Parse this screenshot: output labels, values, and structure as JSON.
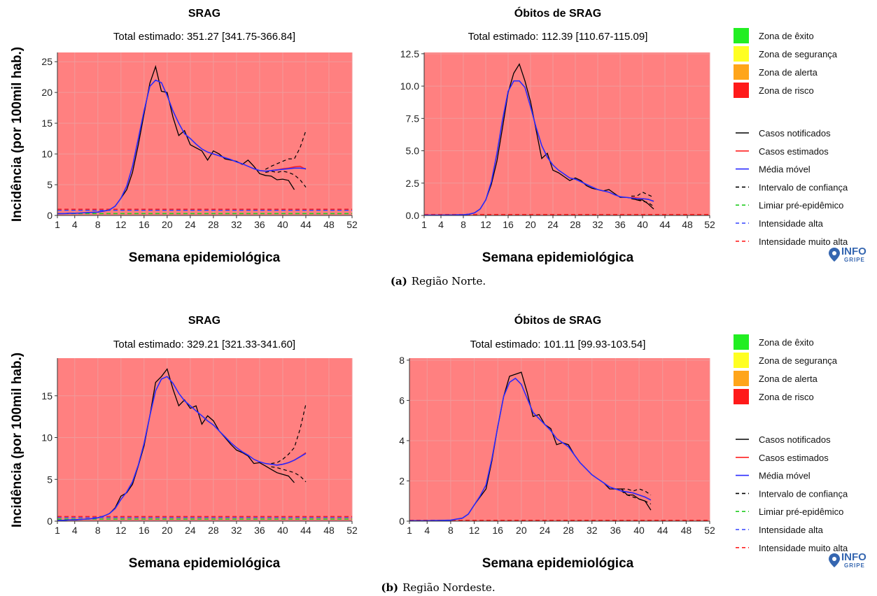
{
  "colors": {
    "panel_bg": "#ff8080",
    "grid": "#f09a9a",
    "notified": "#000000",
    "estimated": "#ff2020",
    "moving_avg": "#2a2aff",
    "ci": "#000000",
    "pre_epidemic": "#22cc22",
    "high": "#3344ff",
    "very_high": "#ff2020",
    "zone_success": "#22ee22",
    "zone_safety": "#ffff22",
    "zone_alert": "#ffa51a",
    "zone_risk": "#ff1a1a",
    "logo": "#3566b0"
  },
  "legend": {
    "zones": [
      {
        "label": "Zona de êxito",
        "color": "#22ee22"
      },
      {
        "label": "Zona de segurança",
        "color": "#ffff22"
      },
      {
        "label": "Zona de alerta",
        "color": "#ffa51a"
      },
      {
        "label": "Zona de risco",
        "color": "#ff1a1a"
      }
    ],
    "lines": [
      {
        "label": "Casos notificados",
        "color": "#000000",
        "dash": false
      },
      {
        "label": "Casos estimados",
        "color": "#ff2020",
        "dash": false
      },
      {
        "label": "Média móvel",
        "color": "#2a2aff",
        "dash": false
      },
      {
        "label": "Intervalo de confiança",
        "color": "#000000",
        "dash": true
      },
      {
        "label": "Limiar pré-epidêmico",
        "color": "#22cc22",
        "dash": true
      },
      {
        "label": "Intensidade alta",
        "color": "#3344ff",
        "dash": true
      },
      {
        "label": "Intensidade muito alta",
        "color": "#ff2020",
        "dash": true
      }
    ]
  },
  "logo": {
    "line1": "INFO",
    "line2": "GRIPE"
  },
  "figures": [
    {
      "label": "(a)",
      "caption": "Região Norte."
    },
    {
      "label": "(b)",
      "caption": "Região Nordeste."
    }
  ],
  "chart_data": [
    {
      "type": "line",
      "title": "SRAG",
      "subtitle": "Total estimado: 351.27 [341.75-366.84]",
      "xlabel": "Semana epidemiológica",
      "ylabel": "Incidência (por 100mil hab.)",
      "xlim": [
        1,
        52
      ],
      "ylim": [
        0,
        26.5
      ],
      "xticks": [
        "1",
        "4",
        "8",
        "12",
        "16",
        "20",
        "24",
        "28",
        "32",
        "36",
        "40",
        "44",
        "48",
        "52"
      ],
      "yticks": [
        "0",
        "5",
        "10",
        "15",
        "20",
        "25"
      ],
      "grid": true,
      "thresholds": {
        "pre_epidemic": 0.3,
        "high": 0.85,
        "very_high": 1.0
      },
      "notified": {
        "x": [
          1,
          2,
          3,
          4,
          5,
          6,
          7,
          8,
          9,
          10,
          11,
          12,
          13,
          14,
          15,
          16,
          17,
          18,
          19,
          20,
          21,
          22,
          23,
          24,
          25,
          26,
          27,
          28,
          29,
          30,
          31,
          32,
          33,
          34,
          35,
          36,
          37,
          38,
          39,
          40,
          41,
          42
        ],
        "y": [
          0.3,
          0.3,
          0.35,
          0.35,
          0.4,
          0.45,
          0.5,
          0.55,
          0.7,
          0.9,
          1.5,
          2.8,
          4.2,
          7.0,
          11.5,
          16.5,
          21.5,
          24.2,
          20.2,
          20.0,
          16.0,
          13.0,
          13.8,
          11.5,
          11.0,
          10.5,
          9.0,
          10.5,
          10.0,
          9.2,
          9.0,
          8.8,
          8.3,
          9.0,
          8.0,
          6.8,
          6.5,
          6.4,
          5.8,
          5.9,
          5.7,
          4.2
        ]
      },
      "moving_avg": {
        "x": [
          1,
          2,
          3,
          4,
          5,
          6,
          7,
          8,
          9,
          10,
          11,
          12,
          13,
          14,
          15,
          16,
          17,
          18,
          19,
          20,
          21,
          22,
          23,
          24,
          25,
          26,
          27,
          28,
          29,
          30,
          31,
          32,
          33,
          34,
          35,
          36,
          37,
          38,
          39,
          40,
          41,
          42,
          43,
          44
        ],
        "y": [
          0.3,
          0.3,
          0.35,
          0.35,
          0.4,
          0.45,
          0.5,
          0.55,
          0.7,
          0.9,
          1.5,
          2.8,
          4.8,
          8.0,
          12.5,
          17.0,
          21.0,
          22.0,
          21.6,
          19.5,
          17.0,
          15.0,
          13.3,
          12.5,
          11.6,
          10.8,
          10.3,
          10.0,
          9.7,
          9.4,
          9.1,
          8.7,
          8.4,
          8.0,
          7.6,
          7.3,
          7.2,
          7.3,
          7.4,
          7.5,
          7.6,
          7.7,
          7.7,
          7.6
        ]
      },
      "estimated": {
        "x": [
          38,
          39,
          40,
          41,
          42,
          43,
          44
        ],
        "y": [
          7.3,
          7.4,
          7.6,
          7.7,
          7.9,
          8.0,
          7.5
        ]
      },
      "ci_upper": {
        "x": [
          37,
          38,
          39,
          40,
          41,
          42,
          43,
          44
        ],
        "y": [
          7.5,
          8.0,
          8.4,
          8.8,
          9.2,
          9.2,
          11.0,
          13.8
        ]
      },
      "ci_lower": {
        "x": [
          37,
          38,
          39,
          40,
          41,
          42,
          43,
          44
        ],
        "y": [
          7.0,
          7.2,
          7.0,
          7.2,
          7.0,
          6.6,
          5.8,
          4.6
        ]
      }
    },
    {
      "type": "line",
      "title": "Óbitos de SRAG",
      "subtitle": "Total estimado: 112.39 [110.67-115.09]",
      "xlabel": "Semana epidemiológica",
      "ylabel": "",
      "xlim": [
        1,
        52
      ],
      "ylim": [
        0,
        12.6
      ],
      "xticks": [
        "1",
        "4",
        "8",
        "12",
        "16",
        "20",
        "24",
        "28",
        "32",
        "36",
        "40",
        "44",
        "48",
        "52"
      ],
      "yticks": [
        "0.0",
        "2.5",
        "5.0",
        "7.5",
        "10.0",
        "12.5"
      ],
      "grid": true,
      "thresholds": {
        "pre_epidemic": 0.04,
        "high": 0.06,
        "very_high": 0.07
      },
      "notified": {
        "x": [
          1,
          2,
          3,
          4,
          5,
          6,
          7,
          8,
          9,
          10,
          11,
          12,
          13,
          14,
          15,
          16,
          17,
          18,
          19,
          20,
          21,
          22,
          23,
          24,
          25,
          26,
          27,
          28,
          29,
          30,
          31,
          32,
          33,
          34,
          35,
          36,
          37,
          38,
          39,
          40,
          41,
          42
        ],
        "y": [
          0.02,
          0.02,
          0.02,
          0.02,
          0.03,
          0.03,
          0.05,
          0.05,
          0.1,
          0.2,
          0.5,
          1.2,
          2.4,
          4.2,
          6.8,
          9.5,
          11.0,
          11.7,
          10.4,
          8.8,
          6.6,
          4.4,
          4.8,
          3.5,
          3.3,
          3.0,
          2.7,
          2.9,
          2.7,
          2.3,
          2.1,
          2.0,
          1.9,
          2.0,
          1.7,
          1.4,
          1.4,
          1.35,
          1.2,
          1.2,
          0.9,
          0.5
        ]
      },
      "moving_avg": {
        "x": [
          1,
          2,
          3,
          4,
          5,
          6,
          7,
          8,
          9,
          10,
          11,
          12,
          13,
          14,
          15,
          16,
          17,
          18,
          19,
          20,
          21,
          22,
          23,
          24,
          25,
          26,
          27,
          28,
          29,
          30,
          31,
          32,
          33,
          34,
          35,
          36,
          37,
          38,
          39,
          40,
          41,
          42
        ],
        "y": [
          0.02,
          0.02,
          0.02,
          0.02,
          0.03,
          0.03,
          0.05,
          0.05,
          0.1,
          0.2,
          0.5,
          1.2,
          2.6,
          4.8,
          7.4,
          9.6,
          10.4,
          10.4,
          9.9,
          8.4,
          6.8,
          5.4,
          4.5,
          3.9,
          3.5,
          3.2,
          2.9,
          2.8,
          2.6,
          2.4,
          2.2,
          2.0,
          1.9,
          1.8,
          1.6,
          1.45,
          1.4,
          1.35,
          1.3,
          1.3,
          1.25,
          1.1
        ]
      },
      "estimated": {
        "x": [
          38,
          39,
          40,
          41,
          42
        ],
        "y": [
          1.4,
          1.35,
          1.3,
          1.25,
          1.1
        ]
      },
      "ci_upper": {
        "x": [
          38,
          39,
          40,
          41,
          42
        ],
        "y": [
          1.5,
          1.5,
          1.8,
          1.6,
          1.4
        ]
      },
      "ci_lower": {
        "x": [
          38,
          39,
          40,
          41,
          42
        ],
        "y": [
          1.3,
          1.2,
          1.1,
          1.0,
          0.7
        ]
      }
    },
    {
      "type": "line",
      "title": "SRAG",
      "subtitle": "Total estimado: 329.21 [321.33-341.60]",
      "xlabel": "Semana epidemiológica",
      "ylabel": "Incidência (por 100mil hab.)",
      "xlim": [
        1,
        52
      ],
      "ylim": [
        0,
        19.5
      ],
      "xticks": [
        "1",
        "4",
        "8",
        "12",
        "16",
        "20",
        "24",
        "28",
        "32",
        "36",
        "40",
        "44",
        "48",
        "52"
      ],
      "yticks": [
        "0",
        "5",
        "10",
        "15"
      ],
      "grid": true,
      "thresholds": {
        "pre_epidemic": 0.25,
        "high": 0.45,
        "very_high": 0.55
      },
      "notified": {
        "x": [
          1,
          2,
          3,
          4,
          5,
          6,
          7,
          8,
          9,
          10,
          11,
          12,
          13,
          14,
          15,
          16,
          17,
          18,
          19,
          20,
          21,
          22,
          23,
          24,
          25,
          26,
          27,
          28,
          29,
          30,
          31,
          32,
          33,
          34,
          35,
          36,
          37,
          38,
          39,
          40,
          41,
          42
        ],
        "y": [
          0.1,
          0.1,
          0.15,
          0.15,
          0.2,
          0.25,
          0.3,
          0.4,
          0.6,
          0.9,
          1.6,
          3.0,
          3.4,
          4.4,
          6.6,
          9.0,
          12.6,
          16.6,
          17.3,
          18.2,
          15.8,
          13.8,
          14.5,
          13.5,
          13.8,
          11.6,
          12.6,
          12.0,
          10.8,
          10.0,
          9.2,
          8.5,
          8.2,
          7.8,
          6.9,
          7.0,
          6.6,
          6.2,
          5.8,
          5.6,
          5.4,
          4.6
        ]
      },
      "moving_avg": {
        "x": [
          1,
          2,
          3,
          4,
          5,
          6,
          7,
          8,
          9,
          10,
          11,
          12,
          13,
          14,
          15,
          16,
          17,
          18,
          19,
          20,
          21,
          22,
          23,
          24,
          25,
          26,
          27,
          28,
          29,
          30,
          31,
          32,
          33,
          34,
          35,
          36,
          37,
          38,
          39,
          40,
          41,
          42,
          43,
          44
        ],
        "y": [
          0.1,
          0.1,
          0.15,
          0.15,
          0.2,
          0.25,
          0.3,
          0.4,
          0.6,
          0.9,
          1.5,
          2.6,
          3.5,
          4.7,
          6.7,
          9.3,
          12.6,
          15.6,
          17.0,
          17.3,
          16.5,
          15.3,
          14.4,
          13.8,
          13.2,
          12.6,
          12.0,
          11.5,
          10.8,
          10.1,
          9.4,
          8.8,
          8.3,
          7.9,
          7.4,
          7.1,
          6.9,
          6.8,
          6.7,
          6.8,
          7.0,
          7.3,
          7.7,
          8.1
        ]
      },
      "estimated": {
        "x": [
          39,
          40,
          41,
          42,
          43,
          44
        ],
        "y": [
          6.7,
          6.8,
          7.0,
          7.3,
          7.7,
          8.2
        ]
      },
      "ci_upper": {
        "x": [
          38,
          39,
          40,
          41,
          42,
          43,
          44
        ],
        "y": [
          6.9,
          7.0,
          7.4,
          8.0,
          8.8,
          11.0,
          14.0
        ]
      },
      "ci_lower": {
        "x": [
          38,
          39,
          40,
          41,
          42,
          43,
          44
        ],
        "y": [
          6.5,
          6.4,
          6.2,
          6.0,
          5.8,
          5.4,
          4.7
        ]
      }
    },
    {
      "type": "line",
      "title": "Óbitos de SRAG",
      "subtitle": "Total estimado: 101.11 [99.93-103.54]",
      "xlabel": "Semana epidemiológica",
      "ylabel": "",
      "xlim": [
        1,
        52
      ],
      "ylim": [
        0,
        8.1
      ],
      "xticks": [
        "1",
        "4",
        "8",
        "12",
        "16",
        "20",
        "24",
        "28",
        "32",
        "36",
        "40",
        "44",
        "48",
        "52"
      ],
      "yticks": [
        "0",
        "2",
        "4",
        "6",
        "8"
      ],
      "grid": true,
      "thresholds": {
        "pre_epidemic": 0.02,
        "high": 0.03,
        "very_high": 0.04
      },
      "notified": {
        "x": [
          1,
          2,
          3,
          4,
          5,
          6,
          7,
          8,
          9,
          10,
          11,
          12,
          13,
          14,
          15,
          16,
          17,
          18,
          19,
          20,
          21,
          22,
          23,
          24,
          25,
          26,
          27,
          28,
          29,
          30,
          31,
          32,
          33,
          34,
          35,
          36,
          37,
          38,
          39,
          40,
          41,
          42
        ],
        "y": [
          0.02,
          0.02,
          0.02,
          0.02,
          0.03,
          0.03,
          0.04,
          0.05,
          0.1,
          0.15,
          0.35,
          0.8,
          1.2,
          1.6,
          3.0,
          4.7,
          6.2,
          7.2,
          7.3,
          7.4,
          6.4,
          5.2,
          5.3,
          4.8,
          4.6,
          3.8,
          3.9,
          3.8,
          3.3,
          2.9,
          2.6,
          2.3,
          2.1,
          1.9,
          1.6,
          1.6,
          1.6,
          1.3,
          1.3,
          1.1,
          1.0,
          0.55
        ]
      },
      "moving_avg": {
        "x": [
          1,
          2,
          3,
          4,
          5,
          6,
          7,
          8,
          9,
          10,
          11,
          12,
          13,
          14,
          15,
          16,
          17,
          18,
          19,
          20,
          21,
          22,
          23,
          24,
          25,
          26,
          27,
          28,
          29,
          30,
          31,
          32,
          33,
          34,
          35,
          36,
          37,
          38,
          39,
          40,
          41,
          42
        ],
        "y": [
          0.02,
          0.02,
          0.02,
          0.02,
          0.03,
          0.03,
          0.04,
          0.05,
          0.1,
          0.15,
          0.35,
          0.8,
          1.25,
          1.8,
          3.1,
          4.7,
          6.2,
          6.9,
          7.1,
          6.8,
          6.1,
          5.4,
          5.1,
          4.8,
          4.5,
          4.1,
          3.9,
          3.7,
          3.3,
          2.9,
          2.6,
          2.3,
          2.1,
          1.9,
          1.7,
          1.6,
          1.5,
          1.45,
          1.4,
          1.3,
          1.2,
          1.05
        ]
      },
      "estimated": {
        "x": [
          38,
          39,
          40,
          41,
          42
        ],
        "y": [
          1.45,
          1.4,
          1.3,
          1.2,
          1.05
        ]
      },
      "ci_upper": {
        "x": [
          37,
          38,
          39,
          40,
          41,
          42
        ],
        "y": [
          1.6,
          1.6,
          1.5,
          1.6,
          1.5,
          1.3
        ]
      },
      "ci_lower": {
        "x": [
          37,
          38,
          39,
          40,
          41,
          42
        ],
        "y": [
          1.5,
          1.3,
          1.2,
          1.1,
          1.0,
          0.85
        ]
      }
    }
  ]
}
